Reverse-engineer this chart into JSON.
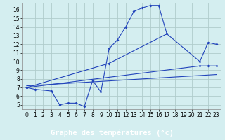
{
  "line1_x": [
    0,
    1,
    3,
    4,
    5,
    6,
    7,
    8,
    9,
    10,
    11,
    12,
    13,
    14,
    15,
    16,
    17
  ],
  "line1_y": [
    7.0,
    6.8,
    6.6,
    5.0,
    5.2,
    5.2,
    4.8,
    7.8,
    6.5,
    11.5,
    12.5,
    14.0,
    15.8,
    16.2,
    16.5,
    16.5,
    13.2
  ],
  "line2_x": [
    0,
    10,
    17,
    21,
    22,
    23
  ],
  "line2_y": [
    7.0,
    9.8,
    13.2,
    10.0,
    12.2,
    12.0
  ],
  "line3_x": [
    0,
    21,
    22,
    23
  ],
  "line3_y": [
    7.0,
    9.5,
    9.5,
    9.5
  ],
  "line4_x": [
    0,
    23
  ],
  "line4_y": [
    7.2,
    8.5
  ],
  "color": "#2244bb",
  "bg_color": "#d4eef0",
  "grid_color": "#b0cccc",
  "xlabel": "Graphe des températures (°c)",
  "xlabel_bg": "#2244bb",
  "xlabel_color": "#ffffff",
  "xlim": [
    -0.5,
    23.5
  ],
  "ylim": [
    4.5,
    16.8
  ],
  "xticks": [
    0,
    1,
    2,
    3,
    4,
    5,
    6,
    7,
    8,
    9,
    10,
    11,
    12,
    13,
    14,
    15,
    16,
    17,
    18,
    19,
    20,
    21,
    22,
    23
  ],
  "yticks": [
    5,
    6,
    7,
    8,
    9,
    10,
    11,
    12,
    13,
    14,
    15,
    16
  ],
  "tick_fontsize": 5.5,
  "xlabel_fontsize": 7.5
}
